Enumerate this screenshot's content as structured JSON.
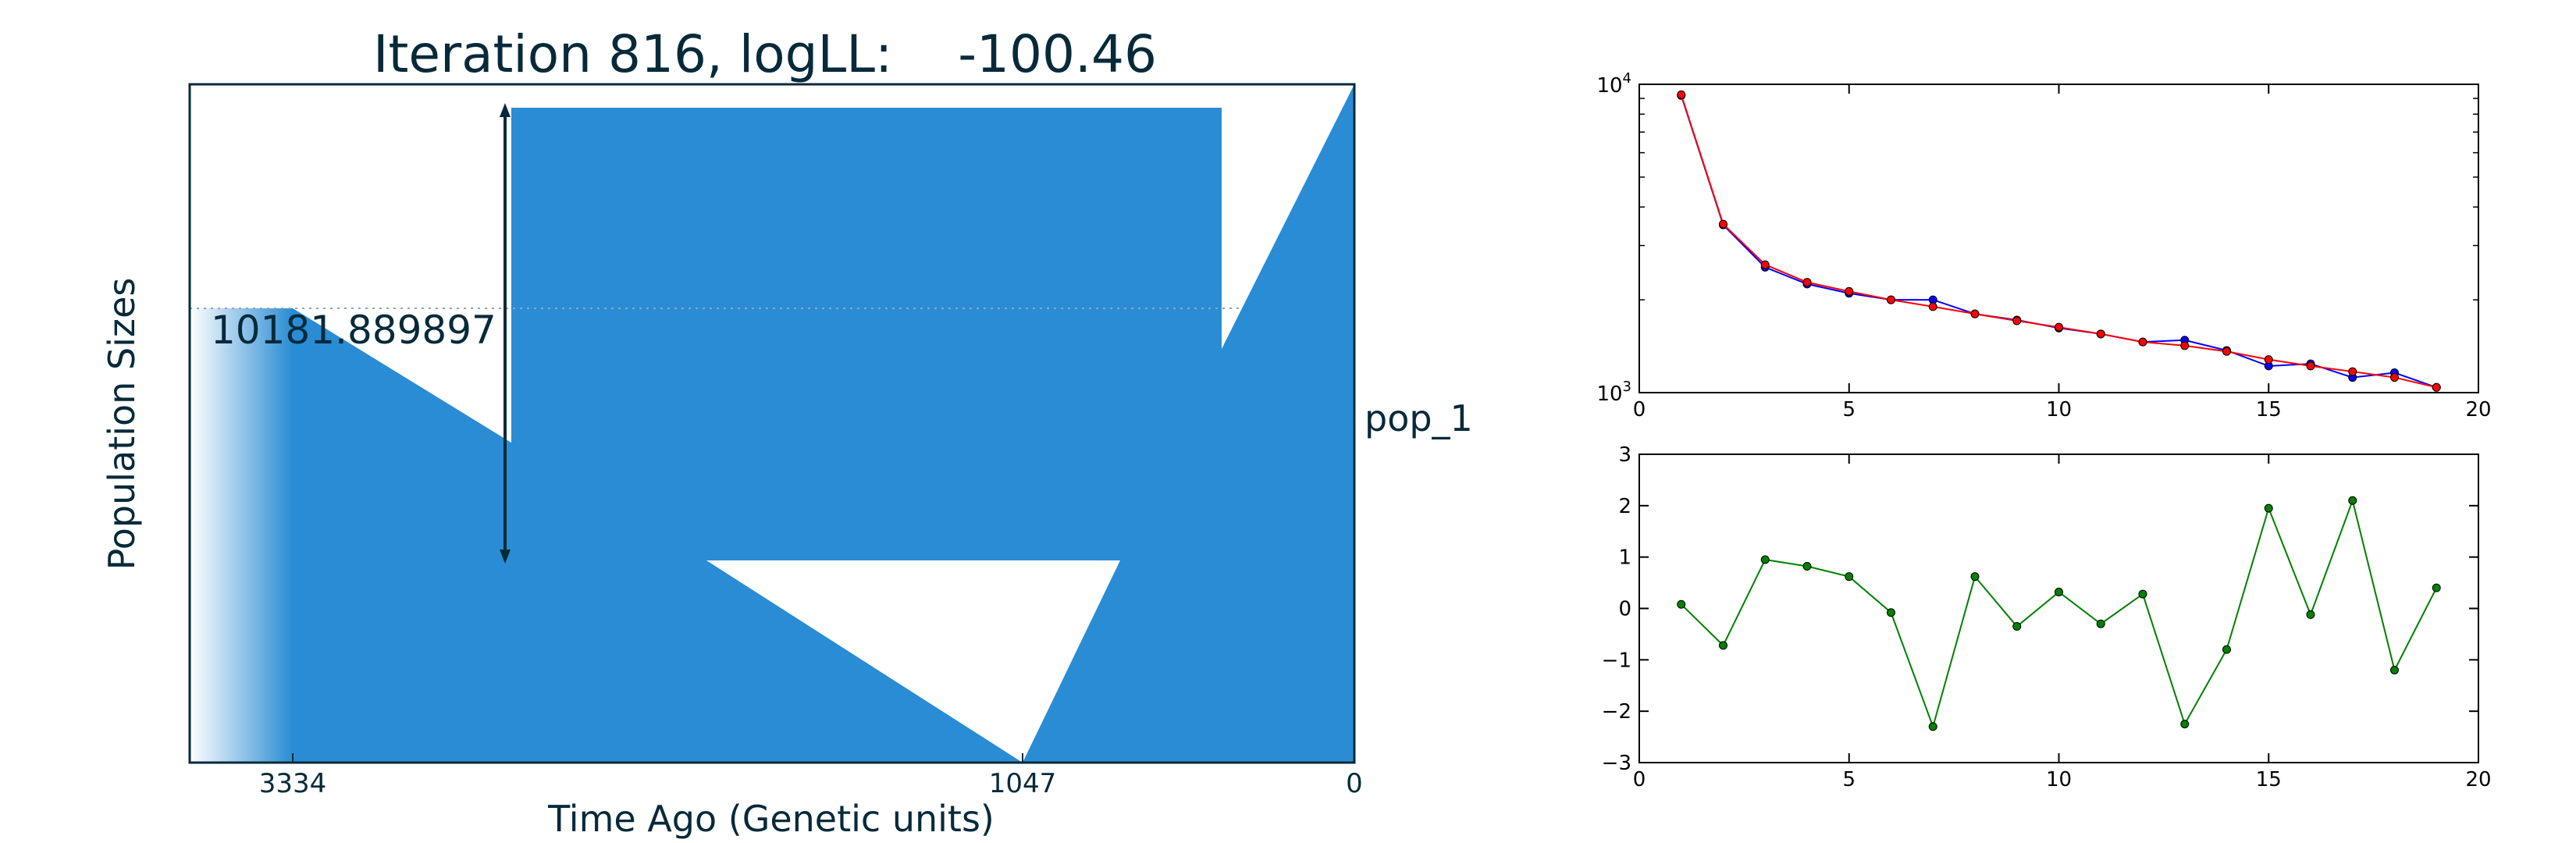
{
  "chart_data": [
    {
      "type": "area",
      "title": "Iteration 816, logLL:    -100.46",
      "xlabel": "Time Ago (Genetic units)",
      "ylabel": "Population Sizes",
      "x_ticks": [
        "3334",
        "1047",
        "0"
      ],
      "population_label": "pop_1",
      "reference_value_label": "10181.889897",
      "x_direction": "time increases to the left",
      "grid": false
    },
    {
      "type": "line",
      "y_scale": "log",
      "xlim": [
        0,
        20
      ],
      "ylim": [
        1000,
        10000
      ],
      "x_ticks": [
        "0",
        "5",
        "10",
        "15",
        "20"
      ],
      "y_ticks": [
        {
          "base": "10",
          "exp": "3"
        },
        {
          "base": "10",
          "exp": "4"
        }
      ],
      "series": [
        {
          "color": "#0000ff",
          "x": [
            1,
            2,
            3,
            4,
            5,
            6,
            7,
            8,
            9,
            10,
            11,
            12,
            13,
            14,
            15,
            16,
            17,
            18,
            19
          ],
          "values": [
            9200,
            3500,
            2550,
            2250,
            2100,
            2000,
            2000,
            1800,
            1720,
            1620,
            1550,
            1460,
            1480,
            1370,
            1220,
            1240,
            1120,
            1160,
            1040
          ]
        },
        {
          "color": "#ff0000",
          "x": [
            1,
            2,
            3,
            4,
            5,
            6,
            7,
            8,
            9,
            10,
            11,
            12,
            13,
            14,
            15,
            16,
            17,
            18,
            19
          ],
          "values": [
            9250,
            3520,
            2600,
            2280,
            2130,
            2000,
            1900,
            1800,
            1710,
            1630,
            1550,
            1460,
            1420,
            1360,
            1280,
            1220,
            1170,
            1120,
            1040
          ]
        }
      ]
    },
    {
      "type": "line",
      "xlim": [
        0,
        20
      ],
      "ylim": [
        -3,
        3
      ],
      "x_ticks": [
        "0",
        "5",
        "10",
        "15",
        "20"
      ],
      "y_ticks": [
        "−3",
        "−2",
        "−1",
        "0",
        "1",
        "2",
        "3"
      ],
      "series": [
        {
          "color": "#008000",
          "x": [
            1,
            2,
            3,
            4,
            5,
            6,
            7,
            8,
            9,
            10,
            11,
            12,
            13,
            14,
            15,
            16,
            17,
            18,
            19
          ],
          "values": [
            0.08,
            -0.72,
            0.95,
            0.82,
            0.62,
            -0.08,
            -2.3,
            0.62,
            -0.35,
            0.32,
            -0.3,
            0.28,
            -2.25,
            -0.8,
            1.95,
            -0.12,
            2.1,
            -1.2,
            0.4
          ]
        }
      ]
    }
  ]
}
